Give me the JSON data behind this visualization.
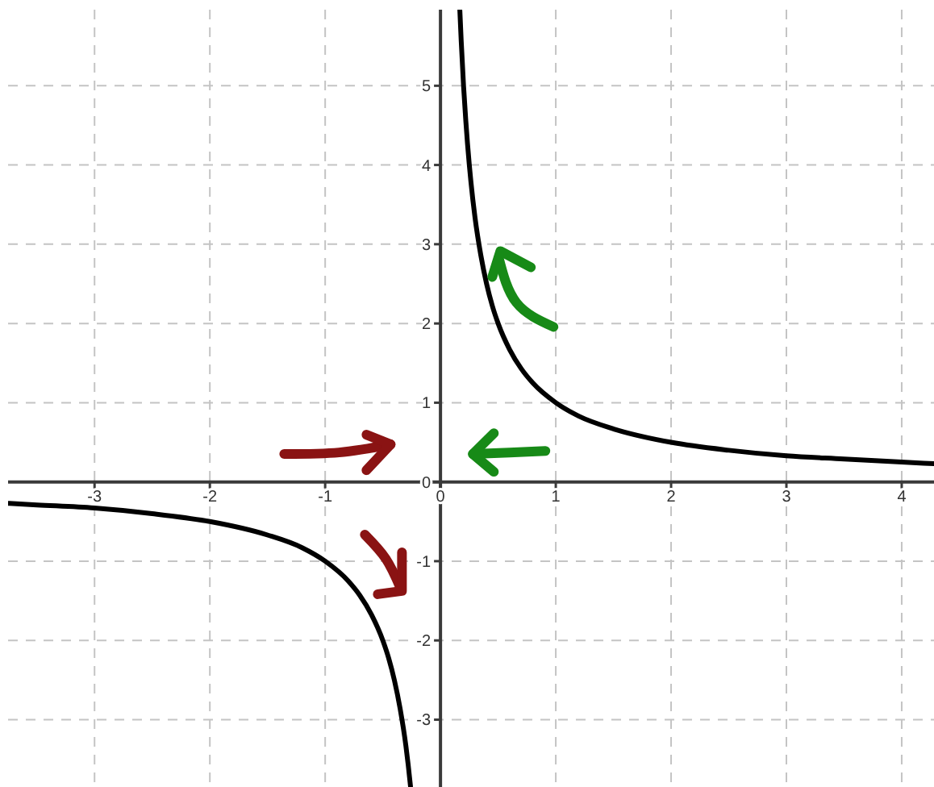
{
  "chart_data": {
    "type": "line",
    "x": [
      -3.75,
      -3.5,
      -3,
      -2.5,
      -2,
      -1.5,
      -1.2,
      -1,
      -0.8,
      -0.7,
      -0.6,
      -0.5,
      -0.45,
      -0.4,
      -0.35,
      -0.3,
      -0.28,
      -0.26,
      0,
      0.168,
      0.18,
      0.2,
      0.22,
      0.25,
      0.28,
      0.3,
      0.35,
      0.4,
      0.45,
      0.5,
      0.6,
      0.7,
      0.8,
      1,
      1.2,
      1.5,
      2,
      2.5,
      3,
      3.5,
      4,
      4.28
    ],
    "series": [
      {
        "color": "#000000",
        "values": [
          -0.27,
          -0.29,
          -0.33,
          -0.4,
          -0.5,
          -0.67,
          -0.83,
          -1,
          -1.25,
          -1.43,
          -1.67,
          -2,
          -2.22,
          -2.5,
          -2.86,
          -3.33,
          -3.57,
          -3.84,
          null,
          5.95,
          5.56,
          5,
          4.55,
          4,
          3.57,
          3.33,
          2.86,
          2.5,
          2.22,
          2,
          1.67,
          1.43,
          1.25,
          1,
          0.83,
          0.67,
          0.5,
          0.4,
          0.33,
          0.29,
          0.25,
          0.23
        ]
      }
    ],
    "xlim": [
      -3.75,
      4.28
    ],
    "ylim": [
      -3.85,
      5.96
    ],
    "xticks": [
      -3,
      -2,
      -1,
      0,
      1,
      2,
      3,
      4
    ],
    "yticks": [
      -3,
      -2,
      -1,
      0,
      1,
      2,
      3,
      4,
      5
    ],
    "grid": true
  }
}
